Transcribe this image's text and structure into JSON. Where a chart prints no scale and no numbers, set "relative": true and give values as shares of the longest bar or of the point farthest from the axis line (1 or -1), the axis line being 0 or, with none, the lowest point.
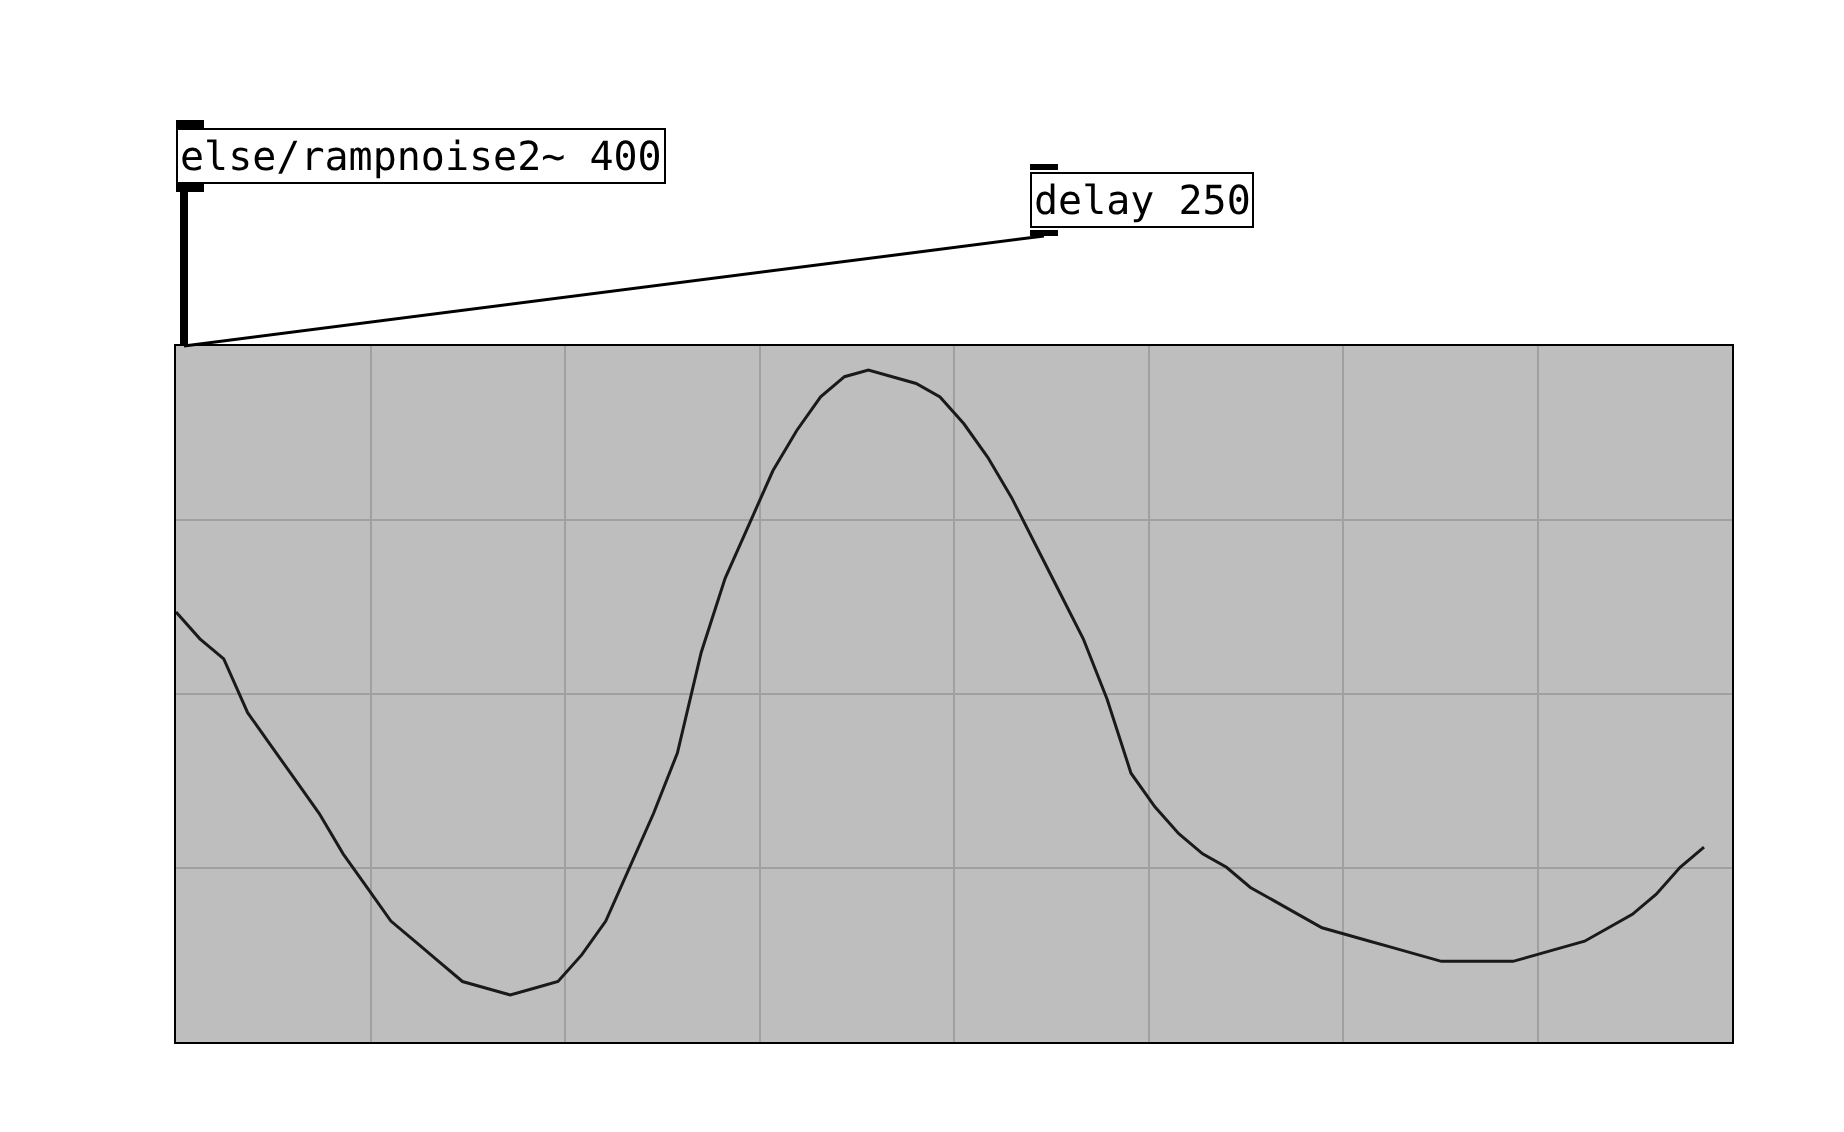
{
  "chart_data": {
    "type": "line",
    "relative": true,
    "grid": true,
    "categories": [
      null,
      null,
      null,
      null,
      null,
      null,
      null,
      null,
      null,
      null,
      null,
      null,
      null,
      null,
      null,
      null,
      null,
      null,
      null,
      null,
      null,
      null,
      null,
      null,
      null,
      null,
      null,
      null,
      null,
      null,
      null,
      null,
      null,
      null,
      null,
      null,
      null,
      null,
      null,
      null,
      null,
      null,
      null,
      null,
      null,
      null,
      null,
      null,
      null,
      null,
      null,
      null,
      null,
      null,
      null,
      null,
      null,
      null,
      null,
      null,
      null,
      null,
      null,
      null,
      null
    ],
    "series": [
      {
        "color": "#1a1a1a",
        "values": [
          0.64,
          0.6,
          0.57,
          0.49,
          0.44,
          0.39,
          0.34,
          0.28,
          0.23,
          0.18,
          0.15,
          0.12,
          0.09,
          0.08,
          0.07,
          0.08,
          0.09,
          0.13,
          0.18,
          0.26,
          0.34,
          0.43,
          0.58,
          0.69,
          0.77,
          0.85,
          0.91,
          0.96,
          0.99,
          1,
          0.99,
          0.98,
          0.96,
          0.92,
          0.87,
          0.81,
          0.74,
          0.67,
          0.6,
          0.51,
          0.4,
          0.35,
          0.31,
          0.28,
          0.26,
          0.23,
          0.21,
          0.19,
          0.17,
          0.16,
          0.15,
          0.14,
          0.13,
          0.12,
          0.12,
          0.12,
          0.12,
          0.13,
          0.14,
          0.15,
          0.17,
          0.19,
          0.22,
          0.26,
          0.29
        ]
      }
    ],
    "annotations": [
      "else/rampnoise2~ 400",
      "delay 250"
    ]
  }
}
